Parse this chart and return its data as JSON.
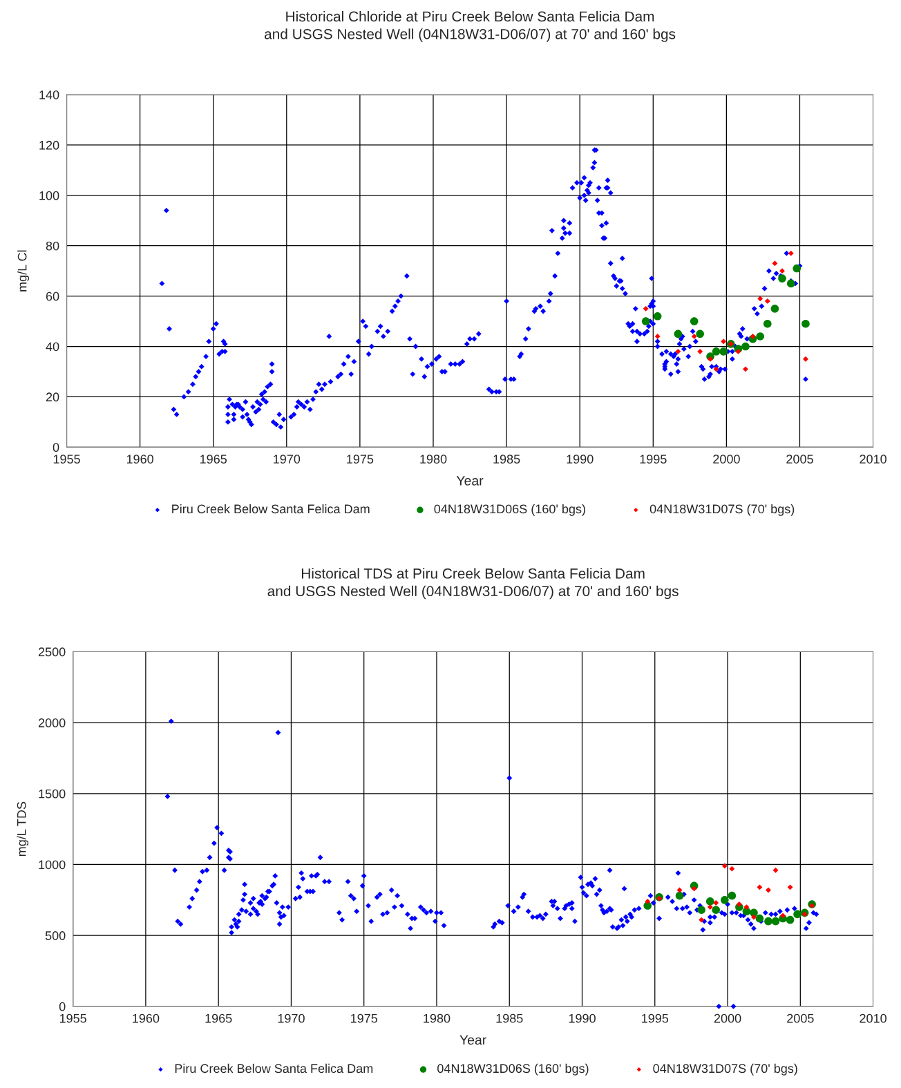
{
  "chart_data": [
    {
      "type": "scatter",
      "title": "Historical Chloride at Piru Creek Below Santa Felicia Dam\nand USGS Nested Well (04N18W31-D06/07) at 70' and 160' bgs",
      "xlabel": "Year",
      "ylabel": "mg/L Cl",
      "xlim": [
        1955,
        2010
      ],
      "xticks": [
        1955,
        1960,
        1965,
        1970,
        1975,
        1980,
        1985,
        1990,
        1995,
        2000,
        2005,
        2010
      ],
      "ylim": [
        0,
        140
      ],
      "yticks": [
        0,
        20,
        40,
        60,
        80,
        100,
        120,
        140
      ],
      "grid": true,
      "legend": "bottom",
      "series": [
        {
          "name": "Piru Creek Below Santa Felica Dam",
          "color": "#0000ff",
          "marker": "diamond",
          "x": [
            1961.5,
            1961.8,
            1962,
            1962.3,
            1962.5,
            1963,
            1963.3,
            1963.6,
            1963.8,
            1964,
            1964.2,
            1964.5,
            1964.7,
            1965,
            1965.2,
            1965.4,
            1965.6,
            1965.7,
            1965.8,
            1965.8,
            1966,
            1966,
            1966,
            1966.1,
            1966.3,
            1966.4,
            1966.4,
            1966.5,
            1966.6,
            1966.7,
            1966.8,
            1967,
            1967,
            1967.2,
            1967.3,
            1967.4,
            1967.5,
            1967.6,
            1967.7,
            1967.9,
            1968,
            1968.1,
            1968.2,
            1968.3,
            1968.4,
            1968.5,
            1968.6,
            1968.7,
            1968.9,
            1969,
            1969,
            1969.1,
            1969.3,
            1969.5,
            1969.6,
            1969.8,
            1970.3,
            1970.5,
            1970.7,
            1970.8,
            1971,
            1971.2,
            1971.4,
            1971.6,
            1971.8,
            1972,
            1972.2,
            1972.4,
            1972.6,
            1972.9,
            1973,
            1973.5,
            1973.7,
            1973.9,
            1974.2,
            1974.4,
            1974.6,
            1974.9,
            1975.2,
            1975.4,
            1975.6,
            1975.8,
            1976.2,
            1976.4,
            1976.6,
            1976.9,
            1977.2,
            1977.4,
            1977.6,
            1977.8,
            1978.2,
            1978.4,
            1978.6,
            1978.8,
            1979.2,
            1979.4,
            1979.6,
            1979.9,
            1980.2,
            1980.4,
            1980.6,
            1980.8,
            1981.2,
            1981.5,
            1981.8,
            1982,
            1982.3,
            1982.5,
            1982.8,
            1983.1,
            1983.8,
            1984,
            1984.3,
            1984.5,
            1984.9,
            1985,
            1985.3,
            1985.5,
            1985.9,
            1986,
            1986.3,
            1986.5,
            1986.9,
            1987,
            1987.3,
            1987.5,
            1987.9,
            1988,
            1988.1,
            1988.3,
            1988.5,
            1988.8,
            1988.9,
            1988.9,
            1989,
            1989.3,
            1989.3,
            1989.5,
            1989.8,
            1990,
            1990.1,
            1990.3,
            1990.3,
            1990.4,
            1990.5,
            1990.6,
            1990.6,
            1990.7,
            1990.9,
            1991,
            1991.1,
            1991,
            1991.2,
            1991.3,
            1991.3,
            1991.5,
            1991.5,
            1991.8,
            1991.6,
            1991.7,
            1991.8,
            1991.9,
            1991.9,
            1992.1,
            1992.1,
            1992.3,
            1992.4,
            1992.5,
            1992.7,
            1992.8,
            1992.9,
            1992.9,
            1993.1,
            1993.8,
            1993.3,
            1993.4,
            1993.6,
            1993.6,
            1993.9,
            1993.9,
            1994.1,
            1994.4,
            1994.6,
            1994.7,
            1994.8,
            1994.8,
            1994.9,
            1994.9,
            1995,
            1995,
            1995,
            1995.3,
            1995.3,
            1995.6,
            1995.9,
            1995.8,
            1995.8,
            1995.8,
            1995.9,
            1996.2,
            1996.2,
            1996.4,
            1996.5,
            1996.6,
            1996.7,
            1996.7,
            1996.8,
            1996.9,
            1997,
            1997.1,
            1997.4,
            1997.5,
            1997.7,
            1997.9,
            1998.3,
            1998.4,
            1998.5,
            1998.8,
            1998.9,
            1999,
            1999.3,
            1999.5,
            1999.6,
            1999.9,
            2000.1,
            2000.4,
            2000.4,
            2000.6,
            2000.9,
            2001,
            2001.1,
            2001.4,
            2001.6,
            2001.9,
            2002.1,
            2002.4,
            2002.6,
            2002.9,
            2003.2,
            2003.4,
            2003.7,
            2004.1,
            2004.4,
            2004.7,
            2005,
            2005.4
          ],
          "values": [
            65,
            94,
            47,
            15,
            13,
            20,
            22,
            25,
            28,
            30,
            32,
            36,
            42,
            47,
            49,
            37,
            38,
            42,
            41,
            38,
            16,
            13,
            10,
            19,
            17,
            13,
            11,
            16,
            17,
            17,
            16,
            15,
            12,
            18,
            13,
            11,
            10,
            9,
            16,
            14,
            18,
            15,
            17,
            21,
            19,
            22,
            18,
            24,
            25,
            30,
            33,
            10,
            9,
            13,
            8,
            11,
            12,
            13,
            16,
            18,
            17,
            16,
            18,
            15,
            19,
            22,
            25,
            23,
            25,
            44,
            26,
            28,
            29,
            33,
            36,
            29,
            34,
            42,
            50,
            48,
            37,
            40,
            46,
            48,
            44,
            46,
            54,
            56,
            58,
            60,
            68,
            43,
            29,
            40,
            35,
            28,
            32,
            33,
            35,
            36,
            30,
            30,
            33,
            33,
            33,
            34,
            41,
            43,
            43,
            45,
            23,
            22,
            22,
            22,
            27,
            58,
            27,
            27,
            36,
            37,
            43,
            47,
            54,
            55,
            56,
            54,
            58,
            61,
            86,
            68,
            77,
            83,
            90,
            87,
            85,
            89,
            85,
            103,
            105,
            99,
            105,
            107,
            100,
            98,
            102,
            101,
            104,
            105,
            111,
            118,
            118,
            113,
            98,
            103,
            93,
            93,
            88,
            89,
            83,
            83,
            103,
            106,
            103,
            101,
            73,
            68,
            67,
            64,
            66,
            66,
            75,
            63,
            61,
            55,
            49,
            48,
            49,
            46,
            46,
            42,
            45,
            45,
            46,
            48,
            50,
            56,
            67,
            57,
            56,
            58,
            49,
            42,
            40,
            37,
            38,
            33,
            32,
            31,
            34,
            29,
            37,
            36,
            37,
            33,
            35,
            30,
            41,
            43,
            44,
            39,
            36,
            40,
            46,
            42,
            32,
            31,
            27,
            28,
            29,
            32,
            32,
            30,
            31,
            31,
            38,
            38,
            35,
            40,
            45,
            44,
            47,
            43,
            43,
            55,
            53,
            56,
            63,
            70,
            67,
            69,
            68,
            77,
            66,
            65,
            72,
            27
          ]
        },
        {
          "name": "04N18W31D06S (160' bgs)",
          "color": "#008000",
          "marker": "circle",
          "x": [
            1994.5,
            1995.3,
            1996.7,
            1997.8,
            1998.2,
            1998.9,
            1999.3,
            1999.8,
            2000.3,
            2000.8,
            2001.3,
            2001.8,
            2002.3,
            2002.8,
            2003.3,
            2003.8,
            2004.4,
            2004.8,
            2005.4
          ],
          "values": [
            50,
            52,
            45,
            50,
            45,
            36,
            38,
            38,
            41,
            39,
            40,
            43,
            44,
            49,
            55,
            67,
            65,
            71,
            49
          ]
        },
        {
          "name": "04N18W31D07S (70' bgs)",
          "color": "#ff0000",
          "marker": "diamond",
          "x": [
            1994.5,
            1995.3,
            1996.7,
            1997.8,
            1998.2,
            1998.9,
            1999.3,
            1999.8,
            2000.3,
            2000.8,
            2001.3,
            2001.8,
            2002.3,
            2002.8,
            2003.3,
            2003.8,
            2004.4,
            2005.4
          ],
          "values": [
            55,
            44,
            38,
            44,
            38,
            35,
            31,
            42,
            41,
            38,
            31,
            44,
            59,
            58,
            73,
            70,
            77,
            35
          ]
        }
      ]
    },
    {
      "type": "scatter",
      "title": "Historical TDS at Piru Creek Below Santa Felicia Dam\nand USGS Nested Well (04N18W31-D06/07) at 70' and 160' bgs",
      "xlabel": "Year",
      "ylabel": "mg/L TDS",
      "xlim": [
        1955,
        2010
      ],
      "xticks": [
        1955,
        1960,
        1965,
        1970,
        1975,
        1980,
        1985,
        1990,
        1995,
        2000,
        2005,
        2010
      ],
      "ylim": [
        0,
        2500
      ],
      "yticks": [
        0,
        500,
        1000,
        1500,
        2000,
        2500
      ],
      "grid": true,
      "legend": "bottom",
      "series": [
        {
          "name": "Piru Creek Below Santa Felica Dam",
          "color": "#0000ff",
          "marker": "diamond",
          "x": [
            1961.5,
            1961.75,
            1962,
            1962.2,
            1962.4,
            1963,
            1963.2,
            1963.5,
            1963.7,
            1963.9,
            1964.2,
            1964.4,
            1964.7,
            1964.9,
            1965.2,
            1965.4,
            1965.7,
            1965.8,
            1965.7,
            1965.8,
            1965.9,
            1965.9,
            1966.1,
            1966.2,
            1966.3,
            1966.4,
            1966.4,
            1966.6,
            1966.7,
            1966.8,
            1966.8,
            1966.9,
            1967.2,
            1967.2,
            1967.4,
            1967.4,
            1967.6,
            1967.7,
            1967.8,
            1967.9,
            1968,
            1968,
            1968.2,
            1968.3,
            1968.4,
            1968.5,
            1968.7,
            1968.8,
            1968.9,
            1969.1,
            1969,
            1969.2,
            1969.2,
            1969.3,
            1969.4,
            1969.5,
            1969.8,
            1970.3,
            1970.6,
            1970.7,
            1970.8,
            1970.5,
            1971.1,
            1971.3,
            1971.5,
            1971.4,
            1971.7,
            1971.8,
            1972,
            1972.3,
            1972.6,
            1973.3,
            1973.5,
            1973.9,
            1974.1,
            1974.3,
            1974.5,
            1974.9,
            1975,
            1975.3,
            1975.5,
            1975.9,
            1976.1,
            1976.3,
            1976.6,
            1976.9,
            1977.1,
            1977.3,
            1977.6,
            1978,
            1978.2,
            1978.3,
            1978.5,
            1978.9,
            1979.1,
            1979.3,
            1979.6,
            1979.9,
            1980,
            1980.3,
            1980.5,
            1985,
            1983.9,
            1984,
            1984.3,
            1984.5,
            1984.9,
            1985.3,
            1985.6,
            1985.9,
            1986,
            1986.3,
            1986.6,
            1986.9,
            1987.1,
            1987.3,
            1987.5,
            1987.9,
            1988.1,
            1988,
            1988.3,
            1988.5,
            1988.8,
            1988.9,
            1989.1,
            1989.3,
            1989.3,
            1989.5,
            1989.9,
            1990,
            1990.1,
            1990.3,
            1990.4,
            1990.6,
            1990.7,
            1990.9,
            1991,
            1991.2,
            1991.3,
            1991.4,
            1991.5,
            1991.7,
            1991.9,
            1991.9,
            1992,
            1992.1,
            1992.4,
            1992.5,
            1992.7,
            1992.9,
            1992.8,
            1993,
            1993.1,
            1993.3,
            1993.4,
            1993.6,
            1993.9,
            1994.7,
            1994.9,
            1995.3,
            1995.9,
            1996.2,
            1996.5,
            1996.6,
            1996.9,
            1997,
            1997.2,
            1997.4,
            1997.7,
            1997.9,
            1998.1,
            1998.3,
            1998.4,
            1998.8,
            1998.8,
            1999.1,
            1999.4,
            1999.6,
            1999.8,
            2000,
            2000.4,
            2000.3,
            2000.6,
            2000.9,
            2001.1,
            2001.4,
            2001.6,
            2001.8,
            2002.3,
            2002.6,
            2003,
            2003.3,
            2003.6,
            2004.1,
            2004.6,
            2005.4,
            2005.6,
            2005.9,
            2006.1
          ],
          "values": [
            1480,
            2010,
            960,
            600,
            580,
            700,
            760,
            820,
            880,
            950,
            960,
            1050,
            1150,
            1260,
            1220,
            960,
            1100,
            1090,
            1050,
            1040,
            520,
            560,
            610,
            580,
            560,
            600,
            650,
            680,
            750,
            860,
            790,
            670,
            650,
            730,
            760,
            690,
            670,
            650,
            730,
            740,
            720,
            780,
            760,
            770,
            810,
            810,
            850,
            860,
            920,
            1930,
            730,
            660,
            580,
            630,
            700,
            640,
            700,
            760,
            770,
            940,
            900,
            840,
            810,
            810,
            810,
            920,
            920,
            930,
            1050,
            880,
            880,
            660,
            610,
            880,
            780,
            760,
            670,
            850,
            920,
            710,
            600,
            770,
            790,
            650,
            660,
            820,
            700,
            780,
            710,
            650,
            550,
            620,
            620,
            700,
            680,
            660,
            670,
            600,
            660,
            660,
            570,
            1610,
            560,
            580,
            600,
            590,
            710,
            670,
            700,
            770,
            790,
            670,
            630,
            630,
            640,
            620,
            650,
            740,
            740,
            710,
            690,
            620,
            690,
            710,
            720,
            730,
            690,
            600,
            910,
            840,
            800,
            780,
            860,
            870,
            850,
            900,
            790,
            820,
            710,
            680,
            660,
            670,
            690,
            960,
            680,
            560,
            550,
            560,
            610,
            830,
            570,
            630,
            600,
            650,
            630,
            680,
            690,
            780,
            730,
            620,
            770,
            740,
            690,
            940,
            690,
            790,
            700,
            660,
            750,
            680,
            710,
            540,
            600,
            630,
            590,
            630,
            0,
            660,
            650,
            720,
            0,
            660,
            660,
            640,
            640,
            610,
            580,
            550,
            600,
            660,
            650,
            650,
            670,
            680,
            690,
            550,
            590,
            660,
            650
          ]
        },
        {
          "name": "04N18W31D06S (160' bgs)",
          "color": "#008000",
          "marker": "circle",
          "x": [
            1994.5,
            1995.3,
            1996.7,
            1997.7,
            1998.2,
            1998.8,
            1999.2,
            1999.8,
            2000.3,
            2000.8,
            2001.3,
            2001.8,
            2002.2,
            2002.8,
            2003.3,
            2003.8,
            2004.3,
            2004.8,
            2005.3,
            2005.8
          ],
          "values": [
            710,
            770,
            780,
            850,
            680,
            740,
            680,
            750,
            780,
            700,
            670,
            660,
            620,
            600,
            600,
            620,
            610,
            650,
            660,
            720
          ]
        },
        {
          "name": "04N18W31D07S (70' bgs)",
          "color": "#ff0000",
          "marker": "diamond",
          "x": [
            1994.5,
            1995.3,
            1996.7,
            1997.7,
            1998.2,
            1998.8,
            1999.2,
            1999.8,
            2000.3,
            2000.8,
            2001.3,
            2001.8,
            2002.2,
            2002.8,
            2003.3,
            2003.8,
            2004.3,
            2005.3,
            2005.8
          ],
          "values": [
            740,
            760,
            820,
            830,
            610,
            700,
            730,
            990,
            970,
            720,
            700,
            630,
            840,
            820,
            960,
            640,
            840,
            650,
            710
          ]
        }
      ]
    }
  ]
}
